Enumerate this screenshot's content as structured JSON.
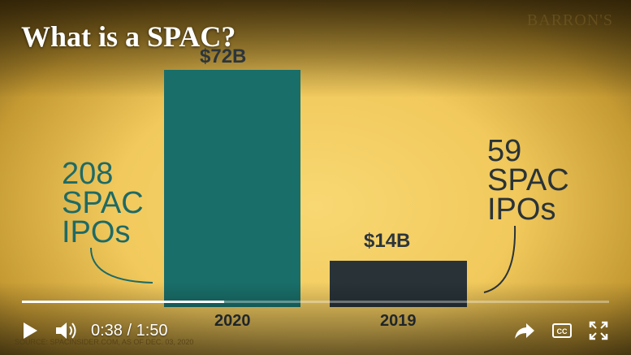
{
  "player": {
    "title": "What is a SPAC?",
    "watermark": "BARRON'S",
    "time_current": "0:38",
    "time_separator": " / ",
    "time_total": "1:50",
    "progress_fraction": 0.345,
    "icons": {
      "play": "play-icon",
      "volume": "volume-icon",
      "share": "share-icon",
      "captions": "closed-captions-icon",
      "fullscreen": "fullscreen-icon"
    }
  },
  "chart_data": {
    "type": "bar",
    "categories": [
      "2020",
      "2019"
    ],
    "values": [
      72,
      14
    ],
    "value_labels": [
      "$72B",
      "$14B"
    ],
    "count_labels": [
      "208\nSPAC\nIPOs",
      "59\nSPAC\nIPOs"
    ],
    "source": "SOURCE: SPACINSIDER.COM, AS OF DEC. 03, 2020",
    "colors": [
      "#196e69",
      "#283237"
    ],
    "ylim": [
      0,
      72
    ],
    "grid": false
  }
}
